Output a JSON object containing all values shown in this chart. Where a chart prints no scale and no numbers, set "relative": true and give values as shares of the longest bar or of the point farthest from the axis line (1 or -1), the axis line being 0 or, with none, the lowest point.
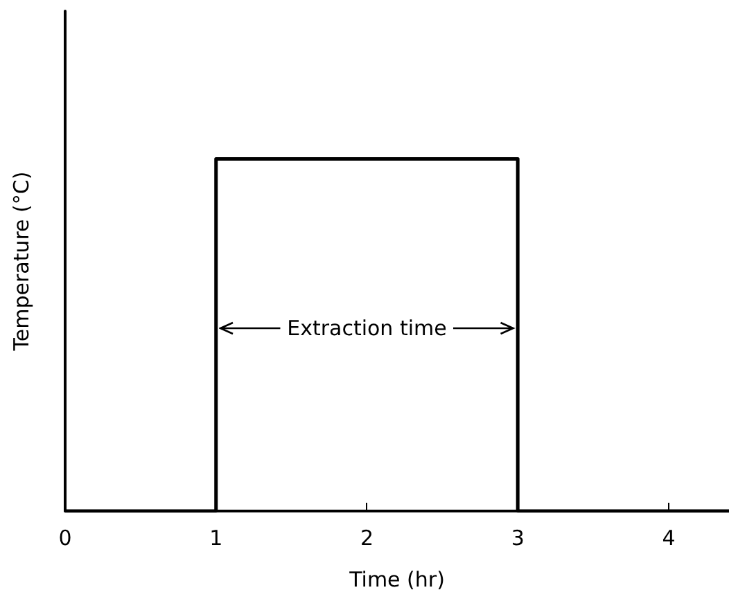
{
  "chart_data": {
    "type": "line",
    "xlabel": "Time (hr)",
    "ylabel": "Temperature (°C)",
    "relative": true,
    "series": [
      {
        "color": "#000000",
        "x": [
          0,
          1,
          1,
          3,
          3,
          4.4
        ],
        "values": [
          0,
          0,
          1,
          1,
          0,
          0
        ]
      }
    ],
    "xlim": [
      0,
      4.4
    ],
    "xticks": [
      0,
      1,
      2,
      3,
      4
    ],
    "annotations": [
      "Extraction time"
    ],
    "grid": false,
    "marker": "none",
    "line_style": "solid"
  }
}
